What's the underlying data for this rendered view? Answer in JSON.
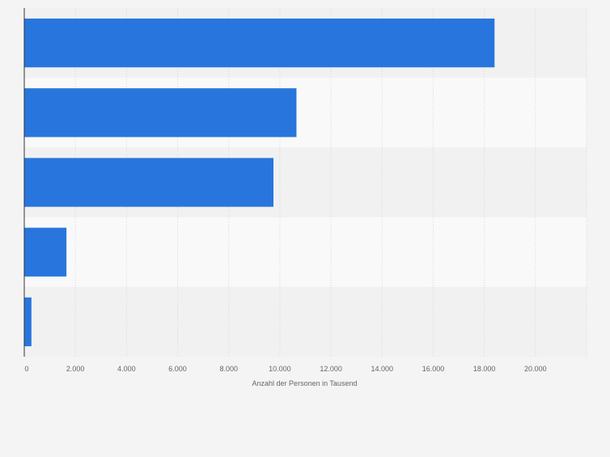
{
  "chart_data": {
    "type": "bar",
    "orientation": "horizontal",
    "categories": [
      "",
      "",
      "",
      "",
      ""
    ],
    "values": [
      18400,
      10650,
      9750,
      1650,
      280
    ],
    "title": "",
    "xlabel": "Anzahl der Personen in Tausend",
    "ylabel": "",
    "xlim": [
      0,
      22000
    ],
    "xticks": [
      0,
      2000,
      4000,
      6000,
      8000,
      10000,
      12000,
      14000,
      16000,
      18000,
      20000
    ],
    "xtick_labels": [
      "0",
      "2.000",
      "4.000",
      "6.000",
      "8.000",
      "10.000",
      "12.000",
      "14.000",
      "16.000",
      "18.000",
      "20.000"
    ],
    "grid": true,
    "legend": "none",
    "colors": {
      "bar": "#2876dd",
      "band_dark": "#f1f1f1",
      "band_light": "#f9f9f9",
      "grid": "#d7d7d7",
      "axis": "#333333",
      "tick_text": "#666666",
      "background": "#f4f4f4"
    }
  }
}
